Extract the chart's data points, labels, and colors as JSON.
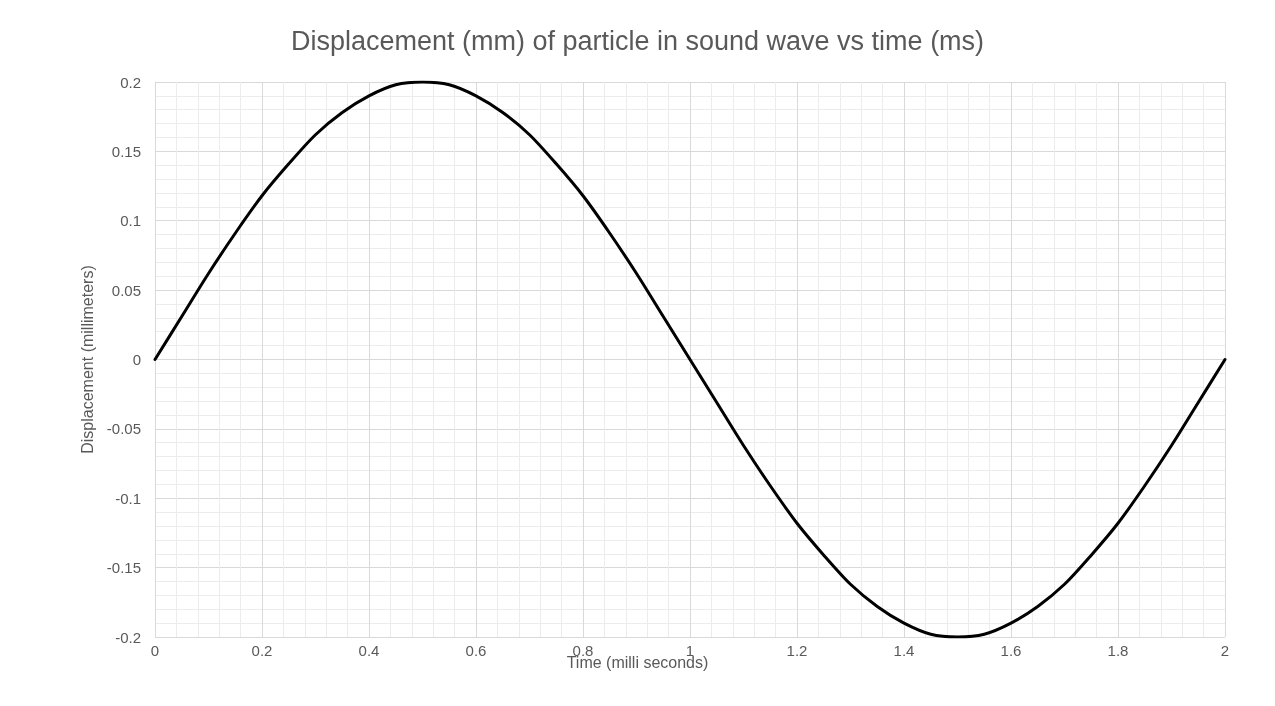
{
  "chart_data": {
    "type": "line",
    "title": "Displacement (mm) of particle in sound wave vs time (ms)",
    "xlabel": "Time (milli seconds)",
    "ylabel": "Displacement (millimeters)",
    "x": [
      0,
      0.05,
      0.1,
      0.15,
      0.2,
      0.25,
      0.3,
      0.35,
      0.4,
      0.45,
      0.5,
      0.55,
      0.6,
      0.65,
      0.7,
      0.75,
      0.8,
      0.85,
      0.9,
      0.95,
      1,
      1.05,
      1.1,
      1.15,
      1.2,
      1.25,
      1.3,
      1.35,
      1.4,
      1.45,
      1.5,
      1.55,
      1.6,
      1.65,
      1.7,
      1.75,
      1.8,
      1.85,
      1.9,
      1.95,
      2
    ],
    "series": [
      {
        "color": "#000000",
        "values": [
          0,
          0.031,
          0.062,
          0.091,
          0.118,
          0.141,
          0.162,
          0.178,
          0.19,
          0.198,
          0.2,
          0.198,
          0.19,
          0.178,
          0.162,
          0.141,
          0.118,
          0.091,
          0.062,
          0.031,
          0,
          -0.031,
          -0.062,
          -0.091,
          -0.118,
          -0.141,
          -0.162,
          -0.178,
          -0.19,
          -0.198,
          -0.2,
          -0.198,
          -0.19,
          -0.178,
          -0.162,
          -0.141,
          -0.118,
          -0.091,
          -0.062,
          -0.031,
          0
        ]
      }
    ],
    "xlim": [
      0,
      2
    ],
    "xticks": [
      0,
      0.2,
      0.4,
      0.6,
      0.8,
      1,
      1.2,
      1.4,
      1.6,
      1.8,
      2
    ],
    "ylim": [
      -0.2,
      0.2
    ],
    "yticks": [
      -0.2,
      -0.15,
      -0.1,
      -0.05,
      0,
      0.05,
      0.1,
      0.15,
      0.2
    ],
    "grid": true,
    "marker": "none",
    "line_style": "solid"
  }
}
